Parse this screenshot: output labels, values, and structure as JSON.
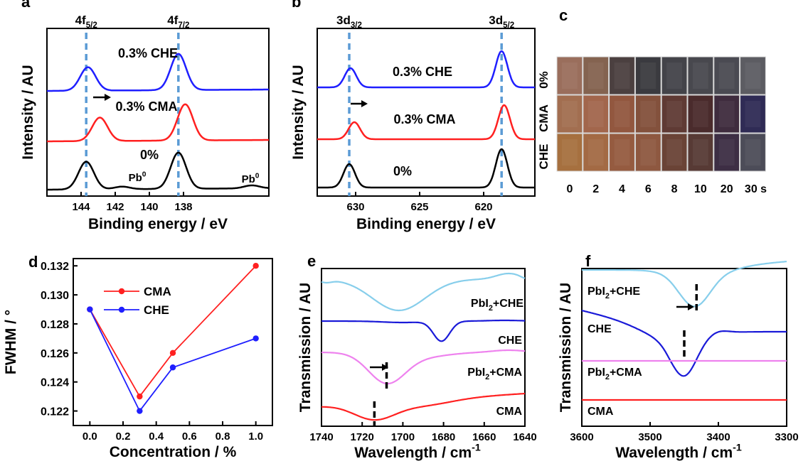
{
  "chart_data": [
    {
      "panel_letter": "a",
      "type": "line",
      "xlabel": "Binding energy / eV",
      "ylabel": "Intensity / AU",
      "xlim": [
        146,
        133
      ],
      "xticks": [
        144,
        142,
        140,
        138
      ],
      "peak_labels": [
        {
          "main": "4f",
          "sub": "5/2"
        },
        {
          "main": "4f",
          "sub": "7/2"
        }
      ],
      "dashed_positions": [
        143.7,
        138.3
      ],
      "series": [
        {
          "name": "0.3% CHE",
          "color": "#1f1fff",
          "peaks": [
            143.6,
            138.3
          ],
          "heights": [
            0.55,
            0.85
          ]
        },
        {
          "name": "0.3% CMA",
          "color": "#ff2020",
          "peaks": [
            142.9,
            137.9
          ],
          "heights": [
            0.55,
            0.85
          ]
        },
        {
          "name": "0%",
          "color": "#000000",
          "peaks": [
            143.7,
            138.3
          ],
          "heights": [
            0.65,
            0.85
          ]
        }
      ],
      "annotations": [
        "Pb",
        "Pb"
      ],
      "annotation_superscript": "0"
    },
    {
      "panel_letter": "b",
      "type": "line",
      "xlabel": "Binding energy / eV",
      "ylabel": "Intensity / AU",
      "xlim": [
        633,
        616
      ],
      "xticks": [
        630,
        625,
        620
      ],
      "peak_labels": [
        {
          "main": "3d",
          "sub": "3/2"
        },
        {
          "main": "3d",
          "sub": "5/2"
        }
      ],
      "dashed_positions": [
        630.5,
        618.6
      ],
      "series": [
        {
          "name": "0.3% CHE",
          "color": "#1f1fff",
          "peaks": [
            630.4,
            618.6
          ],
          "heights": [
            0.45,
            0.85
          ]
        },
        {
          "name": "0.3% CMA",
          "color": "#ff2020",
          "peaks": [
            630.1,
            618.4
          ],
          "heights": [
            0.4,
            0.8
          ]
        },
        {
          "name": "0%",
          "color": "#000000",
          "peaks": [
            630.5,
            618.6
          ],
          "heights": [
            0.55,
            0.9
          ]
        }
      ]
    },
    {
      "panel_letter": "d",
      "type": "line",
      "xlabel": "Concentration / %",
      "ylabel": "FWHM / °",
      "xlim": [
        -0.1,
        1.1
      ],
      "ylim": [
        0.121,
        0.1325
      ],
      "xticks": [
        0.0,
        0.2,
        0.4,
        0.6,
        0.8,
        1.0
      ],
      "yticks": [
        0.122,
        0.124,
        0.126,
        0.128,
        0.13,
        0.132
      ],
      "x": [
        0.0,
        0.3,
        0.5,
        1.0
      ],
      "series": [
        {
          "name": "CMA",
          "color": "#ff2020",
          "values": [
            0.129,
            0.123,
            0.126,
            0.132
          ]
        },
        {
          "name": "CHE",
          "color": "#1f1fff",
          "values": [
            0.129,
            0.122,
            0.125,
            0.127
          ]
        }
      ],
      "legend": "top-left"
    },
    {
      "panel_letter": "e",
      "type": "line",
      "xlabel": "Wavelength / cm",
      "xlabel_superscript": "-1",
      "ylabel": "Transmission / AU",
      "xlim": [
        1740,
        1640
      ],
      "xticks": [
        1740,
        1720,
        1700,
        1680,
        1660,
        1640
      ],
      "dashed_positions": [
        1708,
        1714
      ],
      "series": [
        {
          "name": "PbI2+CHE",
          "label_main": "PbI",
          "label_sub": "2",
          "label_rest": "+CHE",
          "color": "#87ceeb"
        },
        {
          "name": "CHE",
          "label_main": "CHE",
          "label_sub": "",
          "label_rest": "",
          "color": "#1a1ad8"
        },
        {
          "name": "PbI2+CMA",
          "label_main": "PbI",
          "label_sub": "2",
          "label_rest": "+CMA",
          "color": "#ee82ee"
        },
        {
          "name": "CMA",
          "label_main": "CMA",
          "label_sub": "",
          "label_rest": "",
          "color": "#ff2020"
        }
      ]
    },
    {
      "panel_letter": "f",
      "type": "line",
      "xlabel": "Wavelength / cm",
      "xlabel_superscript": "-1",
      "ylabel": "Transmission / AU",
      "xlim": [
        3600,
        3300
      ],
      "xticks": [
        3600,
        3500,
        3400,
        3300
      ],
      "dashed_positions": [
        3432,
        3450
      ],
      "series": [
        {
          "name": "PbI2+CHE",
          "label_main": "PbI",
          "label_sub": "2",
          "label_rest": "+CHE",
          "color": "#87ceeb"
        },
        {
          "name": "CHE",
          "label_main": "CHE",
          "label_sub": "",
          "label_rest": "",
          "color": "#1a1ad8"
        },
        {
          "name": "PbI2+CMA",
          "label_main": "PbI",
          "label_sub": "2",
          "label_rest": "+CMA",
          "color": "#ee82ee"
        },
        {
          "name": "CMA",
          "label_main": "CMA",
          "label_sub": "",
          "label_rest": "",
          "color": "#ff2020"
        }
      ]
    }
  ],
  "photo_panel": {
    "panel_letter": "c",
    "row_labels": [
      "0%",
      "CMA",
      "CHE"
    ],
    "time_labels": [
      "0",
      "2",
      "4",
      "6",
      "8",
      "10",
      "20",
      "30 s"
    ],
    "tile_colors": [
      [
        "#9a6e5c",
        "#846350",
        "#4b4040",
        "#3a3a3f",
        "#434349",
        "#48484e",
        "#4a4a52",
        "#5c5c62"
      ],
      [
        "#a26e50",
        "#a2664c",
        "#92573f",
        "#83513c",
        "#5f3a34",
        "#4a2b2c",
        "#3f2c3e",
        "#2f2b55"
      ],
      [
        "#a6703f",
        "#a36a44",
        "#955b40",
        "#8e5840",
        "#6a4336",
        "#573a35",
        "#3d2e44",
        "#4c4c58"
      ]
    ]
  }
}
